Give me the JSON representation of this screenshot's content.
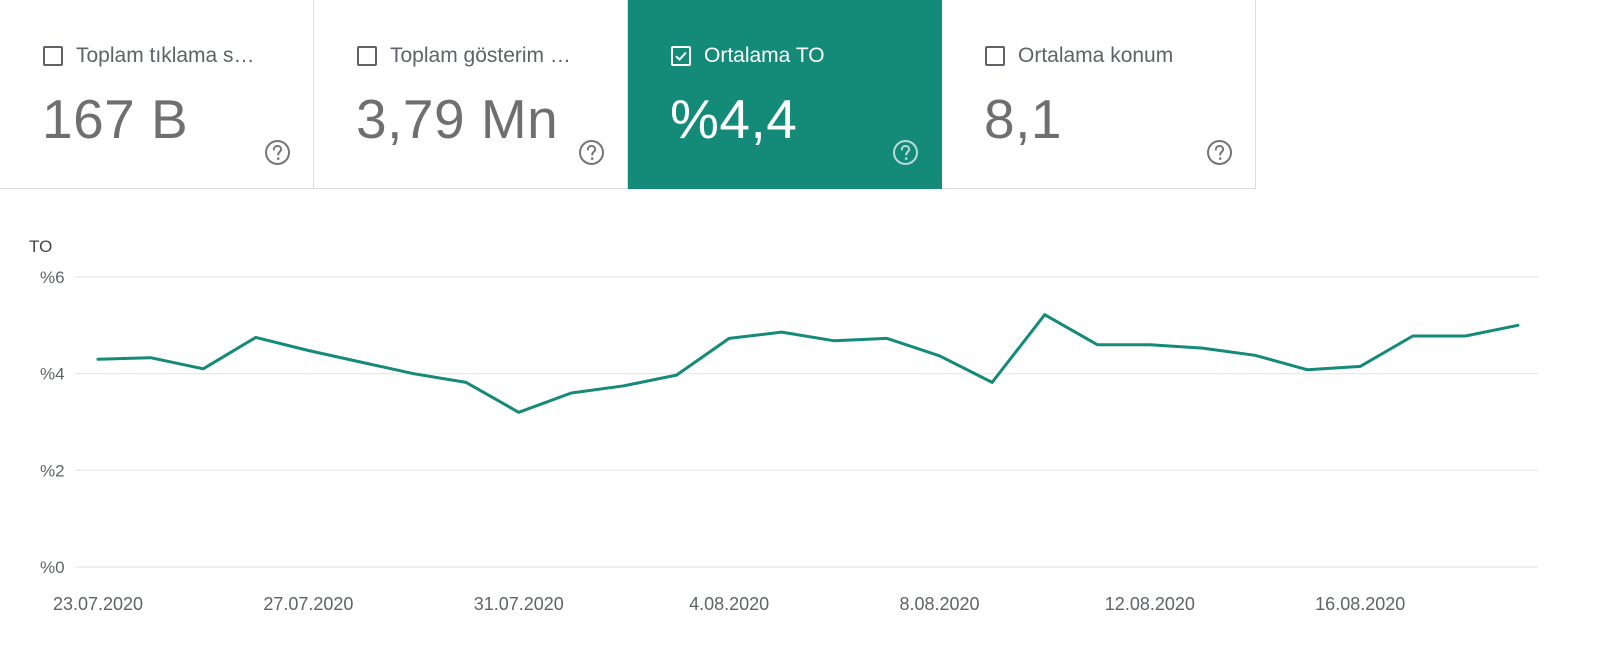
{
  "metrics": [
    {
      "label": "Toplam tıklama s…",
      "value": "167 B",
      "checked": false
    },
    {
      "label": "Toplam gösterim …",
      "value": "3,79 Mn",
      "checked": false
    },
    {
      "label": "Ortalama TO",
      "value": "%4,4",
      "checked": true
    },
    {
      "label": "Ortalama konum",
      "value": "8,1",
      "checked": false
    }
  ],
  "colors": {
    "accent": "#148a79",
    "line": "#148a79",
    "grid": "#e6e6e6",
    "text": "#5f6368"
  },
  "icons": {
    "checkbox": "checkbox-icon",
    "help": "help-circle-icon"
  },
  "chart_data": {
    "type": "line",
    "ylabel": "TO",
    "ylim": [
      0,
      6
    ],
    "yticks": [
      0,
      2,
      4,
      6
    ],
    "ytick_labels": [
      "%0",
      "%2",
      "%4",
      "%6"
    ],
    "x": [
      "23.07.2020",
      "24.07.2020",
      "25.07.2020",
      "26.07.2020",
      "27.07.2020",
      "28.07.2020",
      "29.07.2020",
      "30.07.2020",
      "31.07.2020",
      "1.08.2020",
      "2.08.2020",
      "3.08.2020",
      "4.08.2020",
      "5.08.2020",
      "6.08.2020",
      "7.08.2020",
      "8.08.2020",
      "9.08.2020",
      "10.08.2020",
      "11.08.2020",
      "12.08.2020",
      "13.08.2020",
      "14.08.2020",
      "15.08.2020",
      "16.08.2020",
      "17.08.2020",
      "18.08.2020",
      "19.08.2020"
    ],
    "xtick_labels": [
      "23.07.2020",
      "27.07.2020",
      "31.07.2020",
      "4.08.2020",
      "8.08.2020",
      "12.08.2020",
      "16.08.2020"
    ],
    "xtick_index": [
      0,
      4,
      8,
      12,
      16,
      20,
      24
    ],
    "series": [
      {
        "values": [
          4.3,
          4.33,
          4.1,
          4.75,
          4.48,
          4.24,
          4.0,
          3.82,
          3.2,
          3.6,
          3.75,
          3.97,
          4.73,
          4.86,
          4.68,
          4.73,
          4.37,
          3.82,
          5.22,
          4.6,
          4.6,
          4.53,
          4.38,
          4.08,
          4.15,
          4.78,
          4.78,
          5.0
        ]
      }
    ],
    "grid": true,
    "legend": "none"
  }
}
